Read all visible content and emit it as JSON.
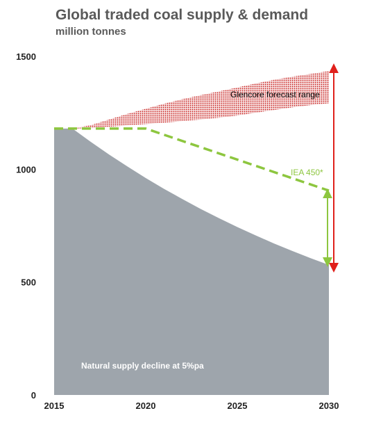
{
  "header": {
    "title": "Global traded coal supply & demand",
    "subtitle": "million tonnes"
  },
  "colors": {
    "supply_fill": "#9ea5ac",
    "forecast_dots": "#c8201e",
    "iea": "#8dc63f",
    "range_arrow": "#e0201b"
  },
  "chart_data": {
    "type": "area",
    "title": "Global traded coal supply & demand",
    "subtitle": "million tonnes",
    "xlabel": "",
    "ylabel": "",
    "xlim": [
      2015,
      2030
    ],
    "ylim": [
      0,
      1500
    ],
    "x_ticks": [
      2015,
      2020,
      2025,
      2030
    ],
    "y_ticks": [
      0,
      500,
      1000,
      1500
    ],
    "grid": false,
    "series": [
      {
        "name": "Natural supply decline at 5%pa",
        "type": "area",
        "x": [
          2015,
          2016,
          2017,
          2018,
          2019,
          2020,
          2021,
          2022,
          2023,
          2024,
          2025,
          2026,
          2027,
          2028,
          2029,
          2030
        ],
        "values": [
          1180,
          1180,
          1121,
          1065,
          1012,
          961,
          913,
          868,
          824,
          783,
          744,
          707,
          671,
          638,
          606,
          576
        ]
      },
      {
        "name": "IEA 450*",
        "type": "line",
        "x": [
          2015,
          2020,
          2030
        ],
        "values": [
          1180,
          1180,
          905
        ]
      },
      {
        "name": "Glencore forecast range",
        "type": "range",
        "x": [
          2015,
          2016,
          2017,
          2018,
          2019,
          2020,
          2021,
          2022,
          2023,
          2024,
          2025,
          2026,
          2027,
          2028,
          2029,
          2030
        ],
        "upper": [
          1180,
          1180,
          1195,
          1220,
          1245,
          1268,
          1290,
          1310,
          1328,
          1345,
          1362,
          1380,
          1396,
          1410,
          1422,
          1435
        ],
        "lower": [
          1180,
          1180,
          1182,
          1188,
          1194,
          1200,
          1206,
          1213,
          1220,
          1228,
          1238,
          1250,
          1262,
          1274,
          1284,
          1292
        ]
      }
    ],
    "annotations": {
      "supply_label": "Natural supply decline at 5%pa",
      "iea_label": "IEA 450*",
      "forecast_label": "Glencore forecast range"
    }
  }
}
